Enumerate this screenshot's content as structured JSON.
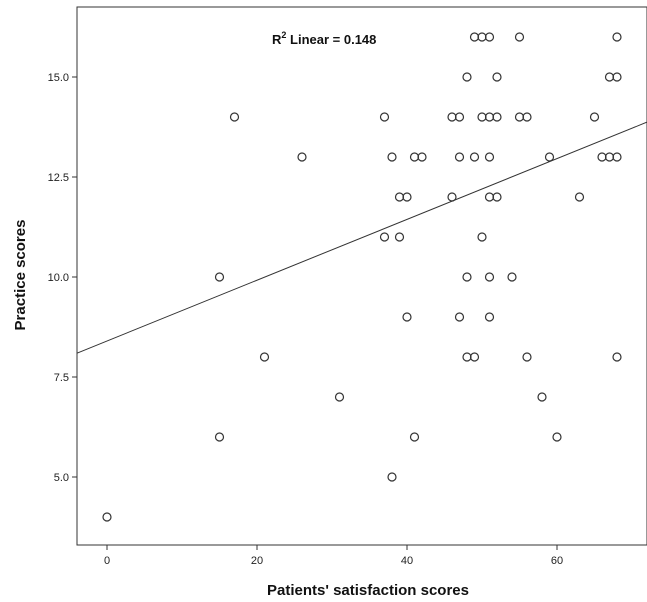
{
  "chart_data": {
    "type": "scatter",
    "xlabel": "Patients' satisfaction scores",
    "ylabel": "Practice scores",
    "xlim": [
      -4,
      72
    ],
    "ylim": [
      3.3,
      16.75
    ],
    "x_ticks": [
      0,
      20,
      40,
      60
    ],
    "y_ticks": [
      5.0,
      7.5,
      10.0,
      12.5,
      15.0
    ],
    "x_tick_labels": [
      "0",
      "20",
      "40",
      "60"
    ],
    "y_tick_labels": [
      "5.0",
      "7.5",
      "10.0",
      "12.5",
      "15.0"
    ],
    "annotation": {
      "prefix": "R",
      "superscript": "2",
      "text": " Linear = 0.148"
    },
    "fit_line": {
      "intercept": 8.4,
      "slope": 0.076
    },
    "grid": false,
    "colors": {
      "marker": "#333333",
      "line": "#333333",
      "axis": "#333333"
    },
    "points": [
      [
        0,
        4
      ],
      [
        15,
        10
      ],
      [
        15,
        6
      ],
      [
        17,
        14
      ],
      [
        21,
        8
      ],
      [
        26,
        13
      ],
      [
        31,
        7
      ],
      [
        37,
        14
      ],
      [
        37,
        11
      ],
      [
        38,
        13
      ],
      [
        38,
        5
      ],
      [
        39,
        12
      ],
      [
        39,
        11
      ],
      [
        40,
        12
      ],
      [
        40,
        9
      ],
      [
        41,
        13
      ],
      [
        41,
        6
      ],
      [
        42,
        13
      ],
      [
        46,
        14
      ],
      [
        46,
        12
      ],
      [
        47,
        14
      ],
      [
        47,
        13
      ],
      [
        47,
        9
      ],
      [
        48,
        15
      ],
      [
        48,
        10
      ],
      [
        48,
        8
      ],
      [
        49,
        16
      ],
      [
        49,
        13
      ],
      [
        49,
        8
      ],
      [
        50,
        16
      ],
      [
        50,
        14
      ],
      [
        50,
        11
      ],
      [
        51,
        16
      ],
      [
        51,
        14
      ],
      [
        51,
        13
      ],
      [
        51,
        12
      ],
      [
        51,
        10
      ],
      [
        51,
        9
      ],
      [
        52,
        15
      ],
      [
        52,
        14
      ],
      [
        52,
        12
      ],
      [
        54,
        10
      ],
      [
        55,
        16
      ],
      [
        55,
        14
      ],
      [
        56,
        14
      ],
      [
        56,
        8
      ],
      [
        58,
        7
      ],
      [
        59,
        13
      ],
      [
        60,
        6
      ],
      [
        63,
        12
      ],
      [
        65,
        14
      ],
      [
        66,
        13
      ],
      [
        67,
        15
      ],
      [
        67,
        13
      ],
      [
        68,
        16
      ],
      [
        68,
        15
      ],
      [
        68,
        13
      ],
      [
        68,
        8
      ]
    ]
  }
}
